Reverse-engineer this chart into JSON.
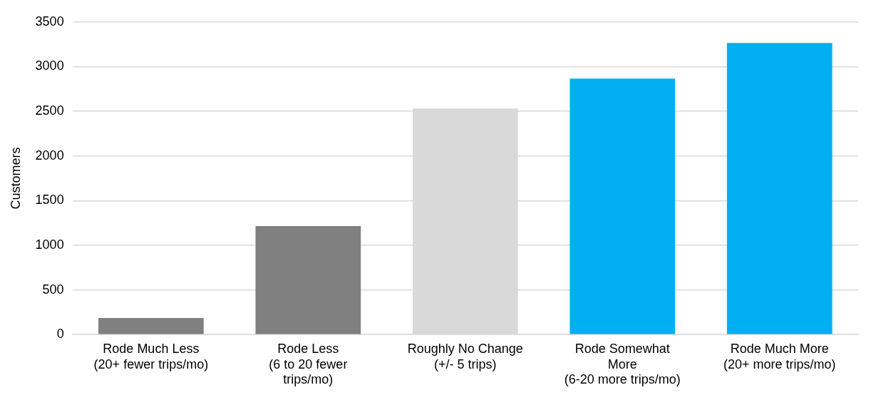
{
  "chart_data": {
    "type": "bar",
    "ylabel": "Customers",
    "categories": [
      "Rode Much Less\n(20+ fewer trips/mo)",
      "Rode Less\n(6 to 20 fewer\ntrips/mo)",
      "Roughly No Change\n(+/- 5 trips)",
      "Rode Somewhat\nMore\n(6-20 more trips/mo)",
      "Rode Much More\n(20+ more trips/mo)"
    ],
    "values": [
      185,
      1215,
      2530,
      2865,
      3265
    ],
    "colors": [
      "#808080",
      "#808080",
      "#d9d9d9",
      "#00b0f0",
      "#00b0f0"
    ],
    "ylim": [
      0,
      3500
    ],
    "yticks": [
      0,
      500,
      1000,
      1500,
      2000,
      2500,
      3000,
      3500
    ],
    "grid": "y",
    "legend": false
  }
}
